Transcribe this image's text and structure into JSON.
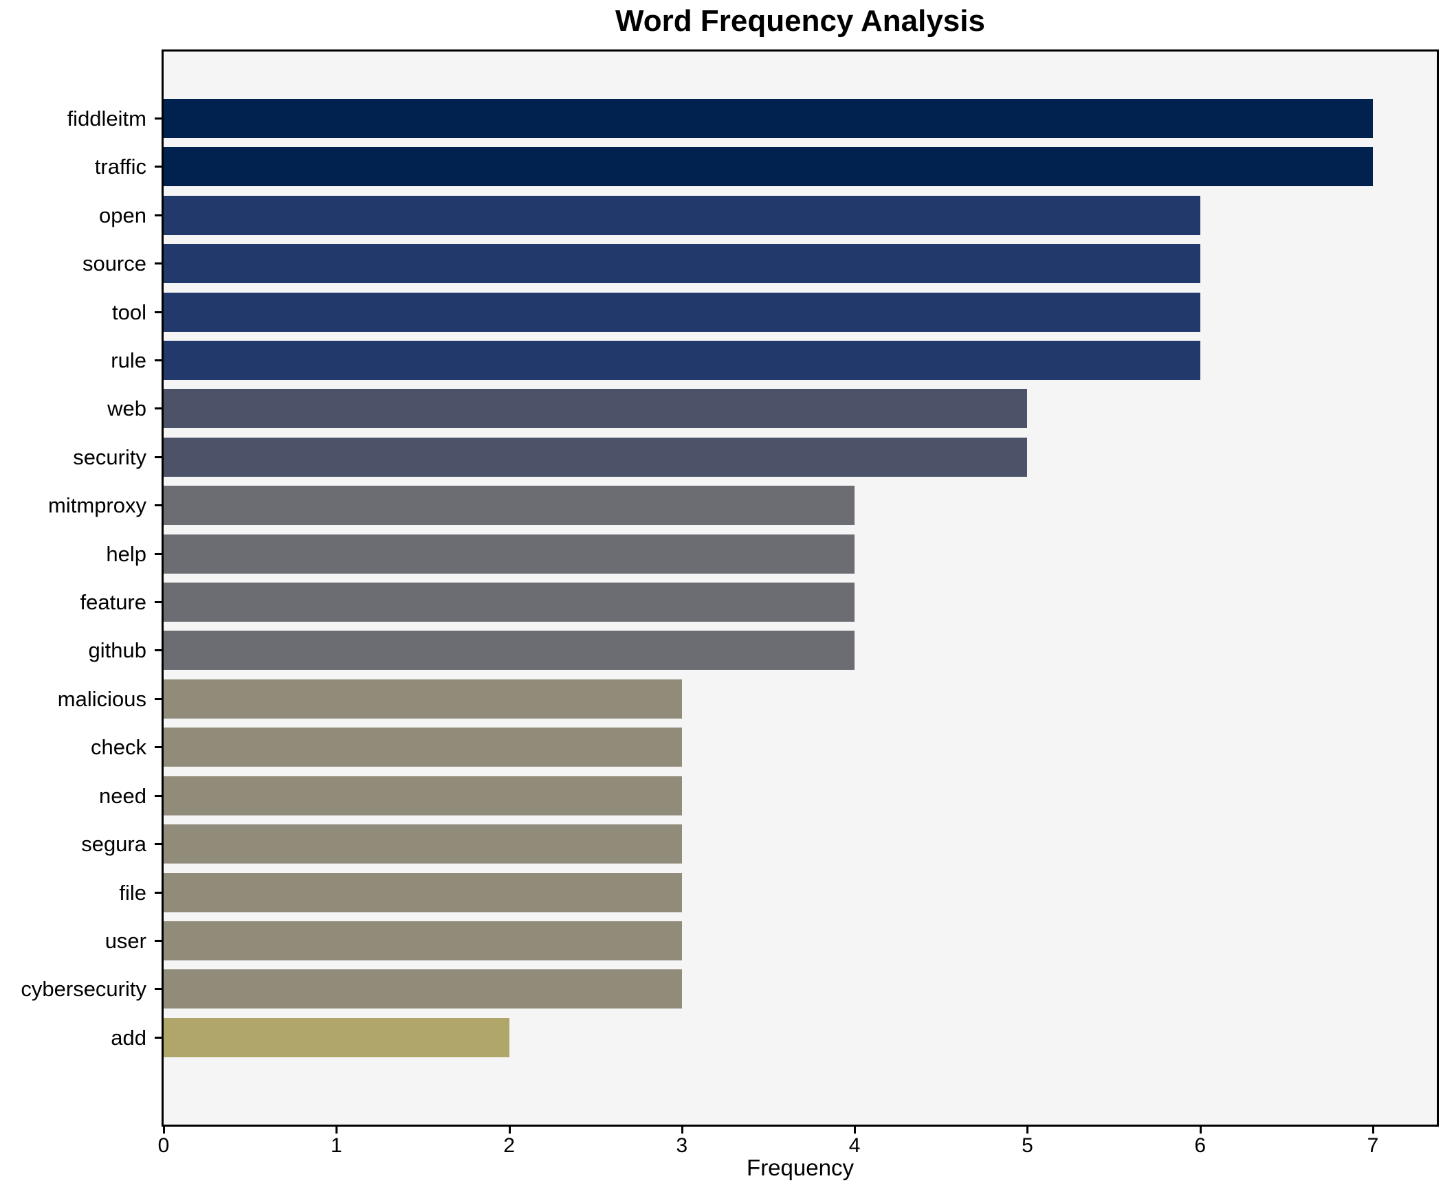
{
  "figure": {
    "background": "#ffffff",
    "plot_background": "#f5f5f6",
    "spine_color": "#000000"
  },
  "chart_data": {
    "type": "bar",
    "orientation": "horizontal",
    "title": "Word Frequency Analysis",
    "xlabel": "Frequency",
    "ylabel": "",
    "categories": [
      "fiddleitm",
      "traffic",
      "open",
      "source",
      "tool",
      "rule",
      "web",
      "security",
      "mitmproxy",
      "help",
      "feature",
      "github",
      "malicious",
      "check",
      "need",
      "segura",
      "file",
      "user",
      "cybersecurity",
      "add"
    ],
    "values": [
      7,
      7,
      6,
      6,
      6,
      6,
      5,
      5,
      4,
      4,
      4,
      4,
      3,
      3,
      3,
      3,
      3,
      3,
      3,
      2
    ],
    "bar_colors": [
      "#01224e",
      "#01224e",
      "#21396b",
      "#21396b",
      "#21396b",
      "#21396b",
      "#4c5267",
      "#4c5267",
      "#6c6d72",
      "#6c6d72",
      "#6c6d72",
      "#6c6d72",
      "#918b7a",
      "#918b7a",
      "#918b7a",
      "#918b7a",
      "#918b7a",
      "#918b7a",
      "#918b7a",
      "#b1a669"
    ],
    "value_color_map": {
      "7": "#01224e",
      "6": "#21396b",
      "5": "#4c5267",
      "4": "#6c6d72",
      "3": "#918b7a",
      "2": "#b1a669"
    },
    "xlim": [
      0,
      7.37
    ],
    "xticks": [
      0,
      1,
      2,
      3,
      4,
      5,
      6,
      7
    ],
    "grid": false,
    "legend": null
  }
}
